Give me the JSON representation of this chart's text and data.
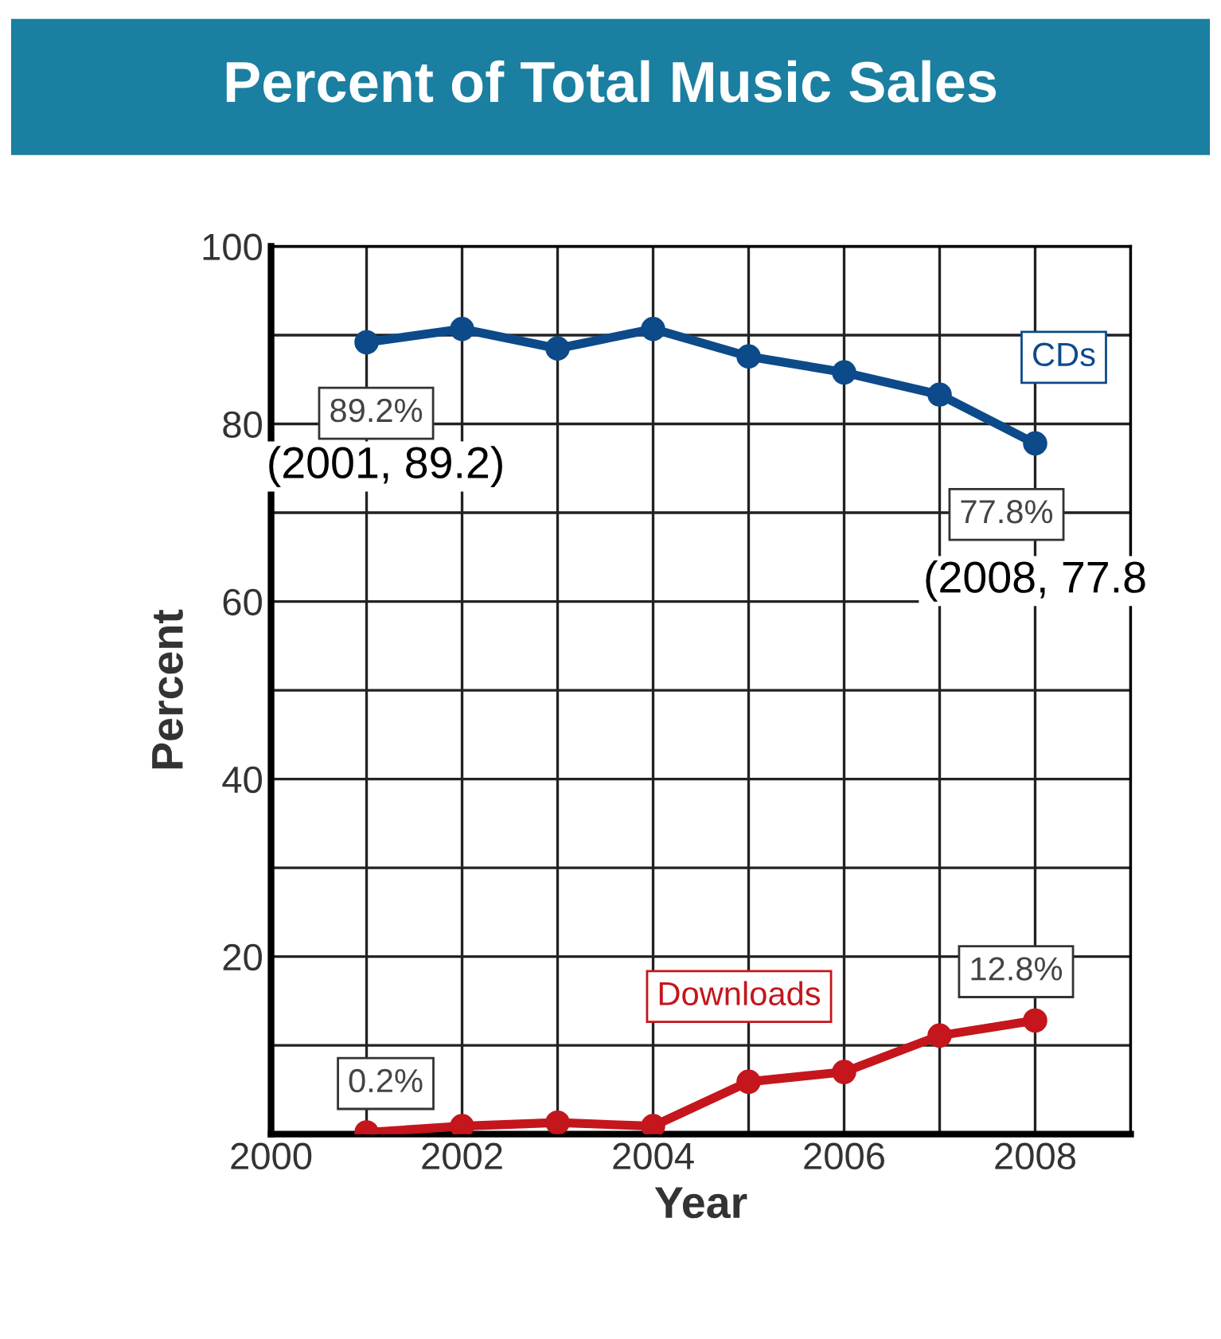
{
  "chart_data": {
    "type": "line",
    "title": "Percent of Total Music Sales",
    "xlabel": "Year",
    "ylabel": "Percent",
    "x": [
      2001,
      2002,
      2003,
      2004,
      2005,
      2006,
      2007,
      2008
    ],
    "series": [
      {
        "name": "CDs",
        "color": "#0d4a8a",
        "values": [
          89.2,
          90.7,
          88.5,
          90.7,
          87.6,
          85.8,
          83.3,
          77.8
        ],
        "value_labels": [
          "89.2%",
          null,
          null,
          null,
          null,
          null,
          null,
          "77.8%"
        ]
      },
      {
        "name": "Downloads",
        "color": "#c4161c",
        "values": [
          0.2,
          0.9,
          1.3,
          0.9,
          5.9,
          7.0,
          11.1,
          12.8
        ],
        "value_labels": [
          "0.2%",
          null,
          null,
          null,
          null,
          null,
          null,
          "12.8%"
        ]
      }
    ],
    "annotations": [
      {
        "text": "(2001, 89.2)",
        "x": 2001,
        "y": 89.2
      },
      {
        "text": "(2008, 77.8",
        "x": 2008,
        "y": 77.8
      }
    ],
    "xlim": [
      2000,
      2009
    ],
    "ylim": [
      0,
      100
    ],
    "xticks": [
      2000,
      {
        "value": 2001,
        "label": null
      },
      2002,
      {
        "value": 2003,
        "label": null
      },
      2004,
      {
        "value": 2005,
        "label": null
      },
      2006,
      {
        "value": 2007,
        "label": null
      },
      2008,
      {
        "value": 2009,
        "label": null
      }
    ],
    "yticks": [
      {
        "value": 0,
        "label": null
      },
      {
        "value": 10,
        "label": null
      },
      20,
      {
        "value": 30,
        "label": null
      },
      40,
      {
        "value": 50,
        "label": null
      },
      60,
      {
        "value": 70,
        "label": null
      },
      80,
      {
        "value": 90,
        "label": null
      },
      100
    ],
    "grid": true,
    "marker": "circle",
    "line_style": "solid",
    "legend": false
  }
}
